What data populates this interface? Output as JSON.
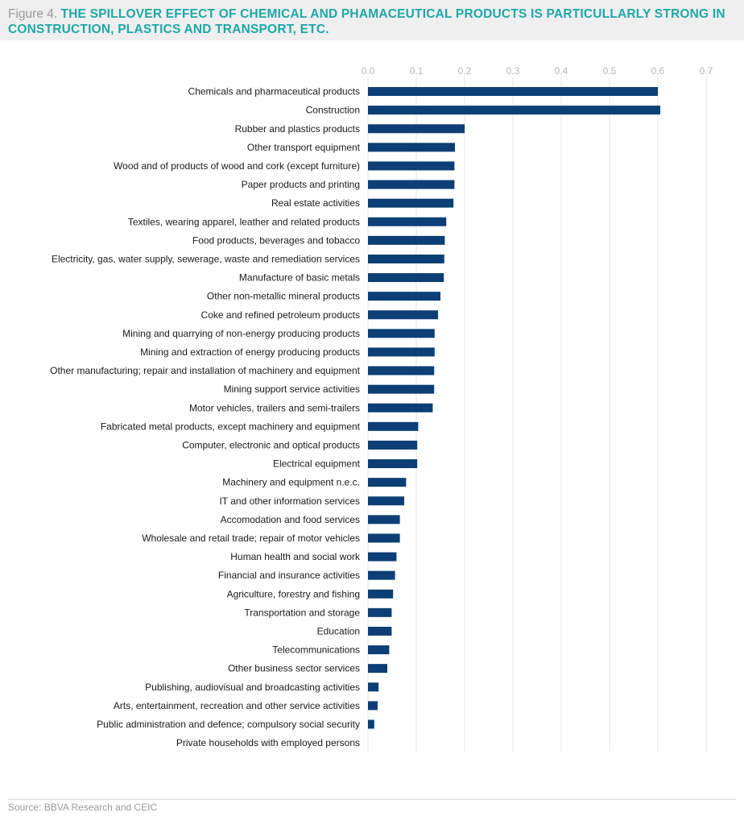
{
  "header": {
    "figure_label": "Figure 4.",
    "title": "THE SPILLOVER EFFECT OF CHEMICAL AND PHAMACEUTICAL PRODUCTS IS PARTICULLARLY STRONG IN CONSTRUCTION, PLASTICS AND TRANSPORT, ETC."
  },
  "footer": {
    "source": "Source: BBVA Research and CEIC"
  },
  "colors": {
    "bar": "#0b3f75",
    "title": "#1fa7a7",
    "grid": "#e6e6e6"
  },
  "chart_data": {
    "type": "bar",
    "orientation": "horizontal",
    "xlim": [
      0,
      0.7
    ],
    "xticks": [
      "0.0",
      "0.1",
      "0.2",
      "0.3",
      "0.4",
      "0.5",
      "0.6",
      "0.7"
    ],
    "tick_position": "top",
    "grid": true,
    "legend": "none",
    "categories": [
      "Chemicals and pharmaceutical products",
      "Construction",
      "Rubber and plastics products",
      "Other transport equipment",
      "Wood and of products of wood and cork (except furniture)",
      "Paper products and printing",
      "Real estate activities",
      "Textiles, wearing apparel, leather and related products",
      "Food products, beverages and tobacco",
      "Electricity, gas, water supply, sewerage, waste and remediation services",
      "Manufacture of basic metals",
      "Other non-metallic mineral products",
      "Coke and refined petroleum products",
      "Mining and quarrying of non-energy producing products",
      "Mining and extraction of energy producing products",
      "Other manufacturing; repair and installation of machinery and equipment",
      "Mining support service activities",
      "Motor vehicles, trailers and semi-trailers",
      "Fabricated metal products, except machinery and equipment",
      "Computer, electronic and optical products",
      "Electrical equipment",
      "Machinery and equipment n.e.c.",
      "IT and other information services",
      "Accomodation and food services",
      "Wholesale and retail trade; repair of motor vehicles",
      "Human health and social work",
      "Financial and insurance activities",
      "Agriculture, forestry and fishing",
      "Transportation and storage",
      "Education",
      "Telecommunications",
      "Other business sector services",
      "Publishing, audiovisual and broadcasting activities",
      "Arts, entertainment, recreation and other service activities",
      "Public administration and defence; compulsory social security",
      "Private households with employed persons"
    ],
    "values": [
      0.6,
      0.605,
      0.2,
      0.18,
      0.179,
      0.179,
      0.177,
      0.162,
      0.159,
      0.158,
      0.157,
      0.15,
      0.145,
      0.138,
      0.138,
      0.137,
      0.137,
      0.134,
      0.104,
      0.102,
      0.102,
      0.079,
      0.075,
      0.066,
      0.066,
      0.059,
      0.056,
      0.052,
      0.049,
      0.049,
      0.044,
      0.04,
      0.022,
      0.02,
      0.013,
      0.0
    ]
  }
}
